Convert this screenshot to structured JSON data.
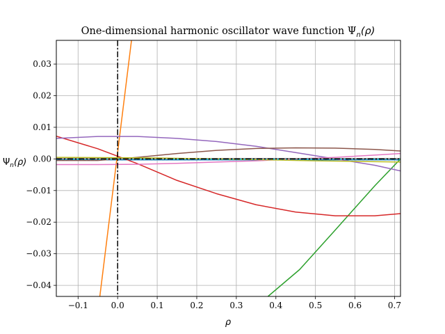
{
  "chart_data": {
    "type": "line",
    "title": "One-dimensional harmonic oscillator wave function Ψ",
    "title_sub": "n",
    "title_tail": "(ρ)",
    "xlabel": "ρ",
    "ylabel": "Ψ",
    "ylabel_sub": "n",
    "ylabel_tail": "(ρ)",
    "xlim": [
      -0.155,
      0.715
    ],
    "ylim": [
      -0.0435,
      0.0375
    ],
    "xticks": [
      -0.1,
      0.0,
      0.1,
      0.2,
      0.3,
      0.4,
      0.5,
      0.6,
      0.7
    ],
    "xtick_labels": [
      "−0.1",
      "0.0",
      "0.1",
      "0.2",
      "0.3",
      "0.4",
      "0.5",
      "0.6",
      "0.7"
    ],
    "yticks": [
      -0.04,
      -0.03,
      -0.02,
      -0.01,
      0.0,
      0.01,
      0.02,
      0.03
    ],
    "ytick_labels": [
      "−0.04",
      "−0.03",
      "−0.02",
      "−0.01",
      "0.00",
      "0.01",
      "0.02",
      "0.03"
    ],
    "grid": true,
    "vline": {
      "x": 0.0,
      "color": "#000000",
      "style": "dashdot"
    },
    "hline": {
      "y": 0.0,
      "color": "#000000",
      "style": "dashdot"
    },
    "series": [
      {
        "color": "#1f77b4",
        "x": [
          -0.155,
          0.715
        ],
        "y": [
          -0.0003,
          -0.0003
        ]
      },
      {
        "color": "#ff7f0e",
        "x": [
          -0.045,
          0.035
        ],
        "y": [
          -0.0435,
          0.0375
        ]
      },
      {
        "color": "#2ca02c",
        "x": [
          0.38,
          0.46,
          0.55,
          0.65,
          0.715
        ],
        "y": [
          -0.0435,
          -0.035,
          -0.0225,
          -0.0085,
          0.0
        ]
      },
      {
        "color": "#d62728",
        "x": [
          -0.155,
          -0.05,
          0.05,
          0.15,
          0.25,
          0.35,
          0.45,
          0.55,
          0.65,
          0.715
        ],
        "y": [
          0.0072,
          0.0032,
          -0.0015,
          -0.0068,
          -0.011,
          -0.0145,
          -0.0168,
          -0.018,
          -0.018,
          -0.0173
        ]
      },
      {
        "color": "#9467bd",
        "x": [
          -0.155,
          -0.05,
          0.05,
          0.15,
          0.25,
          0.35,
          0.45,
          0.55,
          0.65,
          0.715
        ],
        "y": [
          0.0065,
          0.0071,
          0.0071,
          0.0065,
          0.0055,
          0.004,
          0.002,
          0.0,
          -0.002,
          -0.0038
        ]
      },
      {
        "color": "#8c564b",
        "x": [
          -0.155,
          -0.05,
          0.05,
          0.15,
          0.25,
          0.35,
          0.45,
          0.55,
          0.65,
          0.715
        ],
        "y": [
          -0.0005,
          -0.0005,
          0.0005,
          0.0017,
          0.0027,
          0.0033,
          0.0035,
          0.0034,
          0.003,
          0.0025
        ]
      },
      {
        "color": "#e377c2",
        "x": [
          -0.155,
          -0.05,
          0.05,
          0.15,
          0.25,
          0.35,
          0.45,
          0.55,
          0.65,
          0.715
        ],
        "y": [
          -0.0018,
          -0.0018,
          -0.0017,
          -0.0014,
          -0.001,
          -0.0006,
          0.0,
          0.0005,
          0.0012,
          0.0017
        ]
      },
      {
        "color": "#7f7f7f",
        "x": [
          -0.155,
          0.715
        ],
        "y": [
          0.0001,
          0.0001
        ]
      },
      {
        "color": "#bcbd22",
        "x": [
          -0.155,
          0.1,
          0.3,
          0.5,
          0.715
        ],
        "y": [
          0.0005,
          0.0003,
          -0.0001,
          -0.0006,
          -0.001
        ]
      },
      {
        "color": "#17becf",
        "x": [
          -0.155,
          0.715
        ],
        "y": [
          -0.0001,
          -0.0001
        ],
        "dotted": true
      }
    ]
  }
}
